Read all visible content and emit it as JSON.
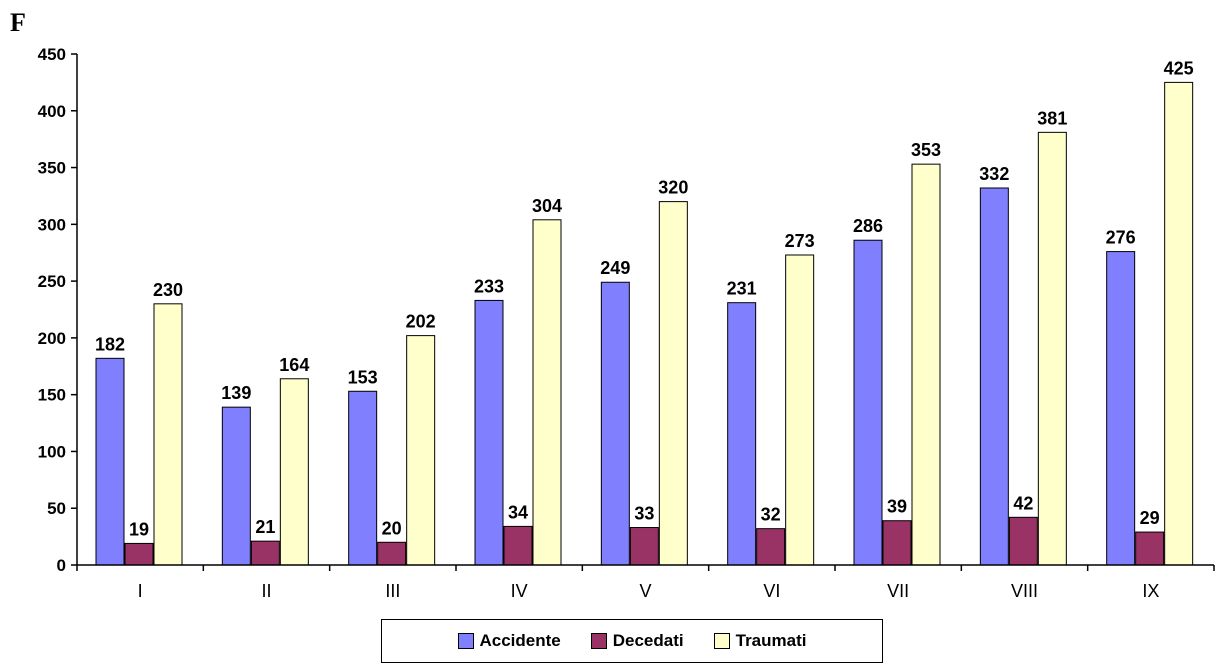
{
  "chart_data": {
    "type": "bar",
    "title": "F",
    "categories": [
      "I",
      "II",
      "III",
      "IV",
      "V",
      "VI",
      "VII",
      "VIII",
      "IX"
    ],
    "series": [
      {
        "name": "Accidente",
        "color": "#8080ff",
        "values": [
          182,
          139,
          153,
          233,
          249,
          231,
          286,
          332,
          276
        ]
      },
      {
        "name": "Decedati",
        "color": "#993366",
        "values": [
          19,
          21,
          20,
          34,
          33,
          32,
          39,
          42,
          29
        ]
      },
      {
        "name": "Traumati",
        "color": "#ffffcc",
        "values": [
          230,
          164,
          202,
          304,
          320,
          273,
          353,
          381,
          425
        ]
      }
    ],
    "ylim": [
      0,
      450
    ],
    "yticks": [
      0,
      50,
      100,
      150,
      200,
      250,
      300,
      350,
      400,
      450
    ],
    "grid": false,
    "legend_position": "bottom"
  }
}
